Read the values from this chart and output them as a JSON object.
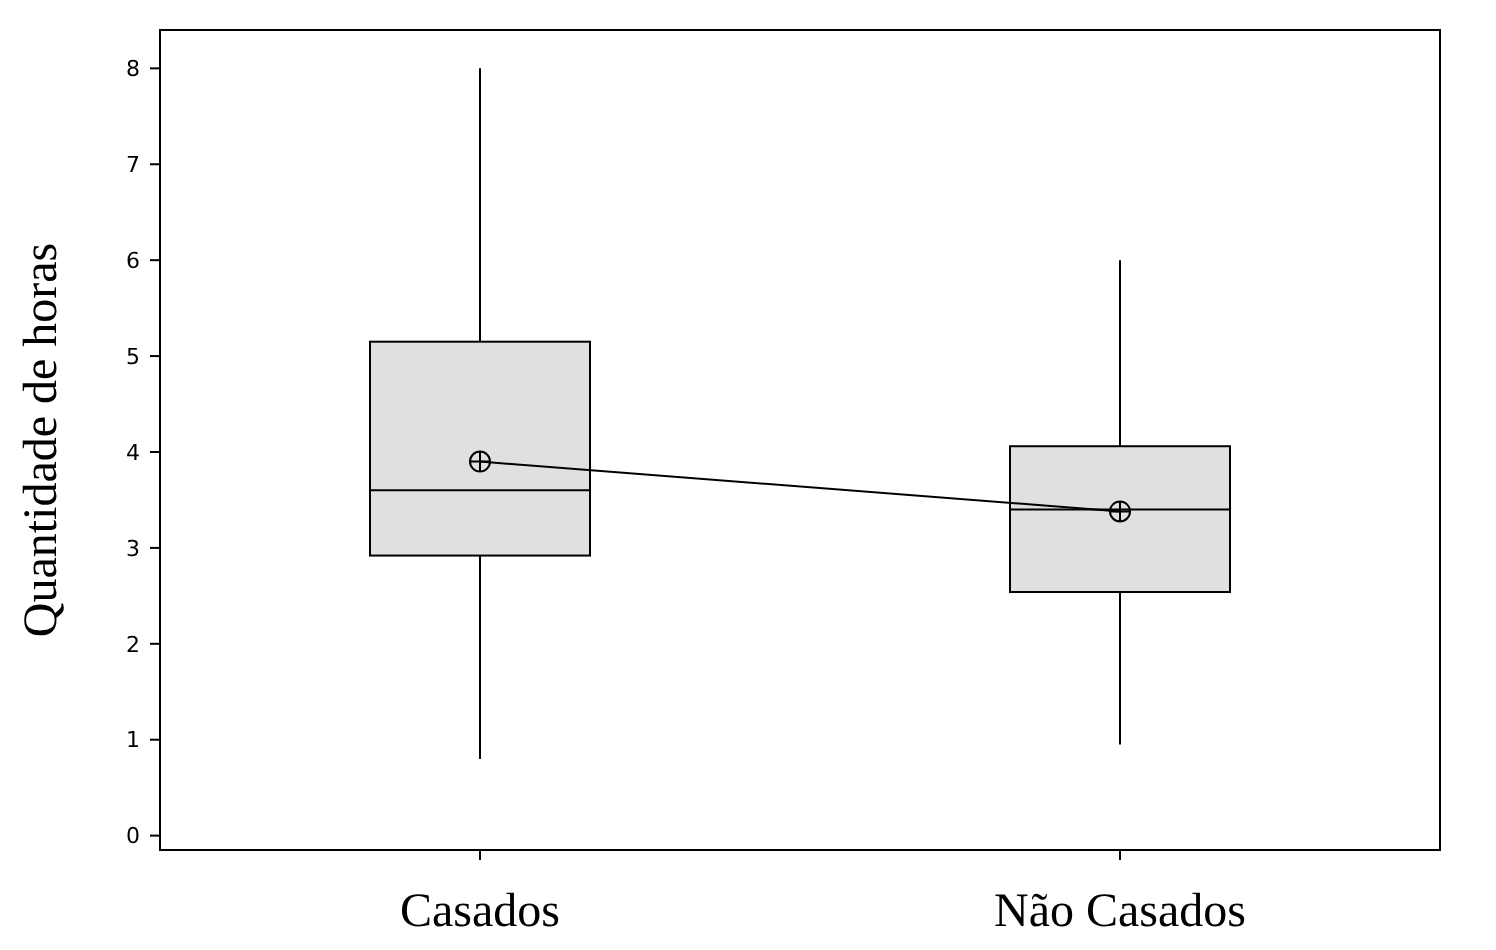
{
  "chart_data": {
    "type": "box",
    "ylabel": "Quantidade de horas",
    "categories": [
      "Casados",
      "Não Casados"
    ],
    "series": [
      {
        "color": "#e0e0e0",
        "boxes": [
          {
            "low": 0.8,
            "q1": 2.92,
            "median": 3.6,
            "q3": 5.15,
            "high": 8,
            "mean": 3.9
          },
          {
            "low": 0.95,
            "q1": 2.54,
            "median": 3.4,
            "q3": 4.06,
            "high": 6,
            "mean": 3.38
          }
        ]
      },
      {
        "type": "line",
        "color": "#000000",
        "values": [
          3.9,
          3.38
        ],
        "marker": "none"
      }
    ],
    "ylim": [
      -0.15,
      8.4
    ],
    "yticks": [
      0,
      1,
      2,
      3,
      4,
      5,
      6,
      7,
      8
    ],
    "grid": false
  }
}
